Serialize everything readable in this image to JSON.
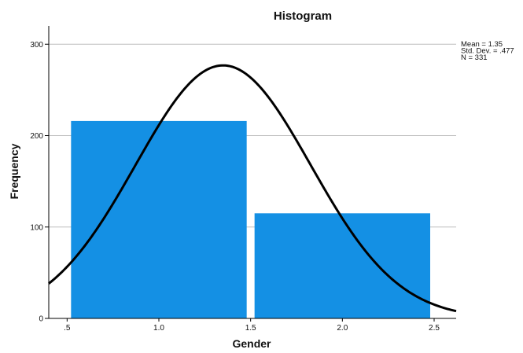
{
  "chart_data": {
    "type": "bar",
    "title": "Histogram",
    "xlabel": "Gender",
    "ylabel": "Frequency",
    "xlim": [
      0.4,
      2.62
    ],
    "ylim": [
      0,
      320
    ],
    "bins": [
      {
        "start": 0.5,
        "end": 1.5,
        "value": 216
      },
      {
        "start": 1.5,
        "end": 2.5,
        "value": 115
      }
    ],
    "x_ticks": [
      {
        "value": 0.5,
        "label": ".5"
      },
      {
        "value": 1.0,
        "label": "1.0"
      },
      {
        "value": 1.5,
        "label": "1.5"
      },
      {
        "value": 2.0,
        "label": "2.0"
      },
      {
        "value": 2.5,
        "label": "2.5"
      }
    ],
    "y_ticks": [
      {
        "value": 0,
        "label": "0"
      },
      {
        "value": 100,
        "label": "100"
      },
      {
        "value": 200,
        "label": "200"
      },
      {
        "value": 300,
        "label": "300"
      }
    ],
    "normal_curve": {
      "mean": 1.35,
      "sd": 0.477,
      "n": 331,
      "bin_width": 1
    },
    "stats_labels": [
      "Mean = 1.35",
      "Std. Dev. = .477",
      "N = 331"
    ],
    "grid": true,
    "colors": {
      "bar": "#1490E4",
      "curve": "#000000",
      "grid": "#BDBDBD",
      "axis": "#000000"
    }
  }
}
